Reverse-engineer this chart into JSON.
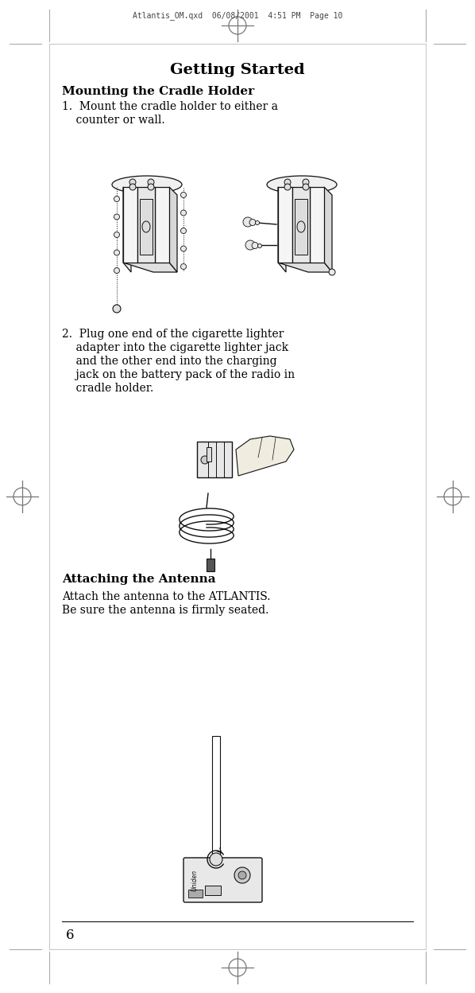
{
  "bg_color": "#ffffff",
  "header_text": "Atlantis_OM.qxd  06/08/2001  4:51 PM  Page 10",
  "title": "Getting Started",
  "section1_title": "Mounting the Cradle Holder",
  "item1_line1": "1.  Mount the cradle holder to either a",
  "item1_line2": "    counter or wall.",
  "item2_line1": "2.  Plug one end of the cigarette lighter",
  "item2_line2": "    adapter into the cigarette lighter jack",
  "item2_line3": "    and the other end into the charging",
  "item2_line4": "    jack on the battery pack of the radio in",
  "item2_line5": "    cradle holder.",
  "section2_title": "Attaching the Antenna",
  "section2_text1": "Attach the antenna to the ATLANTIS.",
  "section2_text2": "Be sure the antenna is firmly seated.",
  "page_num": "6",
  "text_color": "#000000",
  "gray_color": "#777777",
  "light_gray": "#aaaaaa",
  "font_main": "DejaVu Serif",
  "font_bold": "DejaVu Serif",
  "title_size": 14,
  "heading_size": 11,
  "body_size": 10
}
